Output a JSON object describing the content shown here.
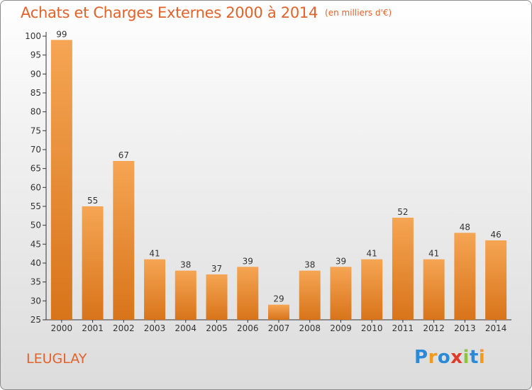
{
  "header": {
    "title": "Achats et Charges Externes 2000 à 2014",
    "subtitle": "(en milliers d'€)"
  },
  "footer": {
    "location": "LEUGLAY",
    "logo": {
      "letters": [
        "P",
        "r",
        "o",
        "x",
        "i",
        "t",
        "i"
      ],
      "colors": [
        "#2a8ad8",
        "#f29a1c",
        "#2a8ad8",
        "#e23a2a",
        "#8cc63f",
        "#2a8ad8",
        "#f29a1c"
      ]
    }
  },
  "colors": {
    "title": "#e2622a",
    "bar_light": "#f5a553",
    "bar_dark": "#d8741a",
    "axis": "#333333"
  },
  "chart_data": {
    "type": "bar",
    "categories": [
      "2000",
      "2001",
      "2002",
      "2003",
      "2004",
      "2005",
      "2006",
      "2007",
      "2008",
      "2009",
      "2010",
      "2011",
      "2012",
      "2013",
      "2014"
    ],
    "values": [
      99,
      55,
      67,
      41,
      38,
      37,
      39,
      29,
      38,
      39,
      41,
      52,
      41,
      48,
      46
    ],
    "title": "Achats et Charges Externes 2000 à 2014",
    "subtitle": "(en milliers d'€)",
    "ylim": [
      25,
      100
    ],
    "yticks": [
      25,
      30,
      35,
      40,
      45,
      50,
      55,
      60,
      65,
      70,
      75,
      80,
      85,
      90,
      95,
      100
    ],
    "grid": false,
    "data_labels": true
  }
}
